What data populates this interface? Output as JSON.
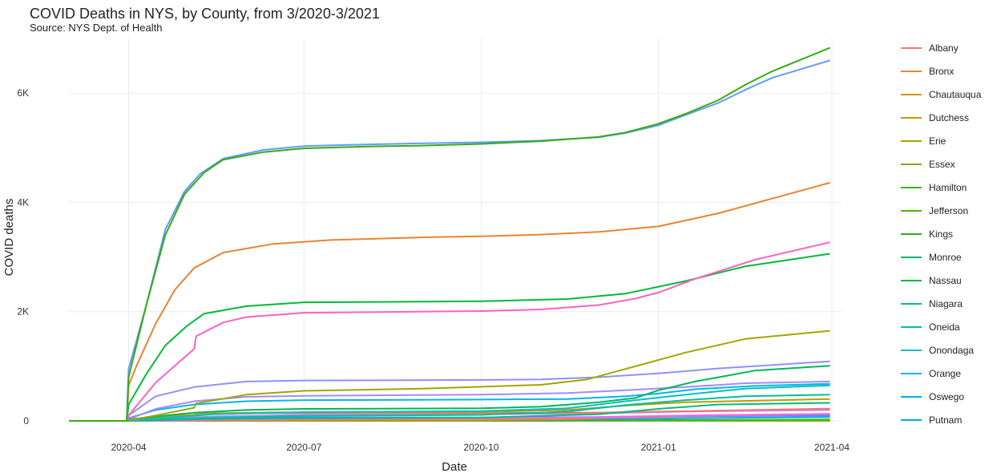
{
  "chart_data": {
    "type": "line",
    "title": "COVID Deaths in NYS, by County, from 3/2020-3/2021",
    "subtitle": "Source: NYS Dept. of Health",
    "xlabel": "Date",
    "ylabel": "COVID deaths",
    "xlim": [
      "2020-03-01",
      "2021-04-06"
    ],
    "ylim": [
      0,
      7000
    ],
    "x_ticks": [
      "2020-04",
      "2020-07",
      "2020-10",
      "2021-01",
      "2021-04"
    ],
    "y_ticks": [
      {
        "value": 0,
        "label": "0"
      },
      {
        "value": 2000,
        "label": "2K"
      },
      {
        "value": 4000,
        "label": "4K"
      },
      {
        "value": 6000,
        "label": "6K"
      }
    ],
    "grid": true,
    "legend_position": "right",
    "series": [
      {
        "name": "Albany",
        "color": "#F8766D",
        "dates": [
          "2020-03-01",
          "2020-03-31",
          "2020-04-01",
          "2020-04-15",
          "2020-05-05",
          "2020-05-06",
          "2020-06-01",
          "2020-07-01",
          "2020-10-01",
          "2020-12-01",
          "2021-01-01",
          "2021-03-31"
        ],
        "values": [
          0,
          0,
          30,
          80,
          110,
          130,
          140,
          141,
          145,
          152,
          170,
          225
        ]
      },
      {
        "name": "Bronx",
        "color": "#EA8332",
        "dates": [
          "2020-03-01",
          "2020-03-31",
          "2020-04-01",
          "2020-04-05",
          "2020-04-15",
          "2020-04-25",
          "2020-05-05",
          "2020-05-20",
          "2020-06-15",
          "2020-07-15",
          "2020-09-01",
          "2020-10-01",
          "2020-11-01",
          "2020-12-01",
          "2021-01-01",
          "2021-02-01",
          "2021-03-31"
        ],
        "values": [
          0,
          0,
          650,
          1000,
          1780,
          2400,
          2800,
          3080,
          3240,
          3310,
          3360,
          3380,
          3410,
          3460,
          3560,
          3800,
          4360
        ]
      },
      {
        "name": "Chautauqua",
        "color": "#D89000",
        "dates": [
          "2020-03-01",
          "2020-03-31",
          "2020-04-01",
          "2020-07-01",
          "2020-10-01",
          "2020-11-15",
          "2020-12-15",
          "2021-01-15",
          "2021-03-31"
        ],
        "values": [
          0,
          0,
          1,
          5,
          10,
          30,
          60,
          85,
          100
        ]
      },
      {
        "name": "Dutchess",
        "color": "#C09B00",
        "dates": [
          "2020-03-01",
          "2020-03-31",
          "2020-04-01",
          "2020-04-15",
          "2020-05-15",
          "2020-06-15",
          "2020-07-15",
          "2020-10-01",
          "2020-11-15",
          "2020-12-15",
          "2021-01-15",
          "2021-03-31"
        ],
        "values": [
          0,
          0,
          10,
          60,
          140,
          155,
          160,
          165,
          200,
          280,
          340,
          400
        ]
      },
      {
        "name": "Erie",
        "color": "#A3A500",
        "dates": [
          "2020-03-01",
          "2020-03-31",
          "2020-04-01",
          "2020-04-15",
          "2020-05-05",
          "2020-05-06",
          "2020-06-01",
          "2020-07-01",
          "2020-09-01",
          "2020-11-01",
          "2020-11-25",
          "2020-12-20",
          "2021-01-15",
          "2021-02-15",
          "2021-03-31"
        ],
        "values": [
          0,
          0,
          10,
          100,
          240,
          320,
          480,
          550,
          590,
          660,
          760,
          1000,
          1250,
          1500,
          1650
        ]
      },
      {
        "name": "Essex",
        "color": "#7CAE00",
        "dates": [
          "2020-03-01",
          "2020-03-31",
          "2020-04-01",
          "2020-07-01",
          "2020-10-01",
          "2020-12-01",
          "2021-03-31"
        ],
        "values": [
          0,
          0,
          1,
          2,
          3,
          6,
          12
        ]
      },
      {
        "name": "Hamilton",
        "color": "#39B600",
        "dates": [
          "2020-03-01",
          "2020-03-31",
          "2020-04-01",
          "2021-03-31"
        ],
        "values": [
          0,
          0,
          0,
          1
        ]
      },
      {
        "name": "Jefferson",
        "color": "#4DB30F",
        "dates": [
          "2020-03-01",
          "2020-03-31",
          "2020-04-01",
          "2020-07-01",
          "2020-10-01",
          "2020-12-01",
          "2021-03-31"
        ],
        "values": [
          0,
          0,
          1,
          2,
          3,
          10,
          25
        ]
      },
      {
        "name": "Kings",
        "color": "#36AB14",
        "dates": [
          "2020-03-01",
          "2020-03-31",
          "2020-04-01",
          "2020-04-10",
          "2020-04-20",
          "2020-04-30",
          "2020-05-10",
          "2020-05-20",
          "2020-06-10",
          "2020-07-01",
          "2020-08-01",
          "2020-09-01",
          "2020-10-01",
          "2020-11-01",
          "2020-12-01",
          "2020-12-15",
          "2021-01-01",
          "2021-01-15",
          "2021-02-01",
          "2021-02-15",
          "2021-03-01",
          "2021-03-31"
        ],
        "values": [
          0,
          0,
          800,
          2100,
          3400,
          4150,
          4540,
          4780,
          4920,
          4990,
          5020,
          5040,
          5070,
          5120,
          5200,
          5280,
          5440,
          5620,
          5870,
          6150,
          6400,
          6830
        ]
      },
      {
        "name": "Monroe",
        "color": "#00B65E",
        "dates": [
          "2020-03-01",
          "2020-03-31",
          "2020-04-01",
          "2020-04-15",
          "2020-05-05",
          "2020-06-01",
          "2020-07-01",
          "2020-10-01",
          "2020-11-01",
          "2020-12-01",
          "2020-12-20",
          "2021-01-01",
          "2021-01-20",
          "2021-02-20",
          "2021-03-31"
        ],
        "values": [
          0,
          0,
          20,
          80,
          150,
          200,
          220,
          230,
          260,
          340,
          420,
          560,
          720,
          920,
          1010
        ]
      },
      {
        "name": "Nassau",
        "color": "#00BA38",
        "dates": [
          "2020-03-01",
          "2020-03-31",
          "2020-04-01",
          "2020-04-10",
          "2020-04-20",
          "2020-05-01",
          "2020-05-10",
          "2020-06-01",
          "2020-07-01",
          "2020-10-01",
          "2020-11-15",
          "2020-12-15",
          "2021-01-15",
          "2021-02-15",
          "2021-03-31"
        ],
        "values": [
          0,
          0,
          300,
          850,
          1380,
          1730,
          1960,
          2100,
          2170,
          2190,
          2230,
          2330,
          2560,
          2830,
          3060
        ]
      },
      {
        "name": "Niagara",
        "color": "#00BF7D",
        "dates": [
          "2020-03-01",
          "2020-03-31",
          "2020-04-01",
          "2020-05-01",
          "2020-06-15",
          "2020-10-01",
          "2020-12-01",
          "2021-01-01",
          "2021-02-01",
          "2021-03-31"
        ],
        "values": [
          0,
          0,
          5,
          30,
          50,
          60,
          120,
          220,
          300,
          330
        ]
      },
      {
        "name": "Oneida",
        "color": "#00BFA1",
        "dates": [
          "2020-03-01",
          "2020-03-31",
          "2020-04-01",
          "2020-05-15",
          "2020-07-01",
          "2020-10-01",
          "2020-11-15",
          "2020-12-15",
          "2021-01-15",
          "2021-02-15",
          "2021-03-31"
        ],
        "values": [
          0,
          0,
          5,
          60,
          90,
          110,
          170,
          290,
          380,
          450,
          480
        ]
      },
      {
        "name": "Onondaga",
        "color": "#00BFC4",
        "dates": [
          "2020-03-01",
          "2020-03-31",
          "2020-04-01",
          "2020-05-15",
          "2020-07-01",
          "2020-10-01",
          "2020-11-15",
          "2020-12-15",
          "2021-01-15",
          "2021-02-15",
          "2021-03-31"
        ],
        "values": [
          0,
          0,
          5,
          120,
          160,
          180,
          230,
          360,
          480,
          590,
          650
        ]
      },
      {
        "name": "Orange",
        "color": "#00B8E7",
        "dates": [
          "2020-03-01",
          "2020-03-31",
          "2020-04-01",
          "2020-04-15",
          "2020-05-05",
          "2020-06-01",
          "2020-07-01",
          "2020-10-01",
          "2020-11-15",
          "2020-12-15",
          "2021-01-01",
          "2021-01-20",
          "2021-02-20",
          "2021-03-31"
        ],
        "values": [
          0,
          0,
          50,
          200,
          300,
          360,
          380,
          390,
          400,
          450,
          500,
          580,
          640,
          680
        ]
      },
      {
        "name": "Oswego",
        "color": "#00ADFA",
        "dates": [
          "2020-03-01",
          "2020-03-31",
          "2020-04-01",
          "2020-07-01",
          "2020-10-01",
          "2020-12-01",
          "2021-01-15",
          "2021-03-31"
        ],
        "values": [
          0,
          0,
          1,
          5,
          10,
          25,
          50,
          70
        ]
      },
      {
        "name": "Putnam",
        "color": "#00A5FF",
        "dates": [
          "2020-03-01",
          "2020-03-31",
          "2020-04-01",
          "2020-05-01",
          "2020-07-01",
          "2020-10-01",
          "2020-12-01",
          "2021-01-15",
          "2021-03-31"
        ],
        "values": [
          0,
          0,
          5,
          50,
          60,
          63,
          70,
          85,
          100
        ]
      },
      {
        "name": "",
        "color": "#619CFF",
        "dates": [
          "2020-03-01",
          "2020-03-31",
          "2020-04-01",
          "2020-04-10",
          "2020-04-20",
          "2020-04-30",
          "2020-05-08",
          "2020-05-20",
          "2020-06-10",
          "2020-07-01",
          "2020-08-01",
          "2020-09-01",
          "2020-10-01",
          "2020-11-01",
          "2020-12-01",
          "2020-12-15",
          "2021-01-01",
          "2021-01-15",
          "2021-02-01",
          "2021-02-15",
          "2021-03-01",
          "2021-03-31"
        ],
        "values": [
          0,
          0,
          950,
          2100,
          3500,
          4200,
          4520,
          4800,
          4960,
          5030,
          5060,
          5080,
          5100,
          5130,
          5190,
          5270,
          5410,
          5600,
          5820,
          6060,
          6280,
          6600
        ]
      },
      {
        "name": "",
        "color": "#FF61C3",
        "dates": [
          "2020-03-01",
          "2020-03-31",
          "2020-04-01",
          "2020-04-15",
          "2020-05-05",
          "2020-05-06",
          "2020-05-20",
          "2020-06-01",
          "2020-07-01",
          "2020-10-01",
          "2020-11-01",
          "2020-12-01",
          "2020-12-20",
          "2021-01-01",
          "2021-01-20",
          "2021-02-20",
          "2021-03-31"
        ],
        "values": [
          0,
          0,
          100,
          700,
          1320,
          1550,
          1800,
          1900,
          1980,
          2010,
          2040,
          2120,
          2240,
          2350,
          2600,
          2950,
          3270
        ]
      },
      {
        "name": "",
        "color": "#8F91FF",
        "dates": [
          "2020-03-01",
          "2020-03-31",
          "2020-04-01",
          "2020-04-15",
          "2020-05-05",
          "2020-06-01",
          "2020-07-01",
          "2020-10-01",
          "2020-11-01",
          "2020-12-01",
          "2021-01-01",
          "2021-02-01",
          "2021-03-31"
        ],
        "values": [
          0,
          0,
          100,
          450,
          620,
          720,
          740,
          750,
          760,
          800,
          870,
          960,
          1090
        ]
      },
      {
        "name": "",
        "color": "#C77CFF",
        "dates": [
          "2020-03-01",
          "2020-03-31",
          "2020-04-01",
          "2020-05-15",
          "2020-07-01",
          "2020-10-01",
          "2020-12-01",
          "2021-01-15",
          "2021-03-31"
        ],
        "values": [
          0,
          0,
          5,
          80,
          110,
          120,
          140,
          170,
          200
        ]
      },
      {
        "name": "",
        "color": "#A58AFF",
        "dates": [
          "2020-03-01",
          "2020-03-31",
          "2020-04-01",
          "2020-04-15",
          "2020-05-05",
          "2020-06-01",
          "2020-07-01",
          "2020-10-01",
          "2020-11-15",
          "2020-12-15",
          "2021-01-15",
          "2021-02-15",
          "2021-03-31"
        ],
        "values": [
          0,
          0,
          30,
          220,
          360,
          440,
          460,
          480,
          510,
          560,
          620,
          690,
          720
        ]
      },
      {
        "name": "",
        "color": "#E76BF3",
        "dates": [
          "2020-03-01",
          "2020-03-31",
          "2020-04-01",
          "2020-07-01",
          "2020-10-01",
          "2020-12-01",
          "2021-01-15",
          "2021-03-31"
        ],
        "values": [
          0,
          0,
          3,
          40,
          50,
          70,
          100,
          130
        ]
      },
      {
        "name": "",
        "color": "#FF67A4",
        "dates": [
          "2020-03-01",
          "2020-03-31",
          "2020-04-01",
          "2020-07-01",
          "2020-10-01",
          "2020-12-01",
          "2021-01-15",
          "2021-03-31"
        ],
        "values": [
          0,
          0,
          3,
          30,
          40,
          60,
          90,
          120
        ]
      }
    ]
  }
}
